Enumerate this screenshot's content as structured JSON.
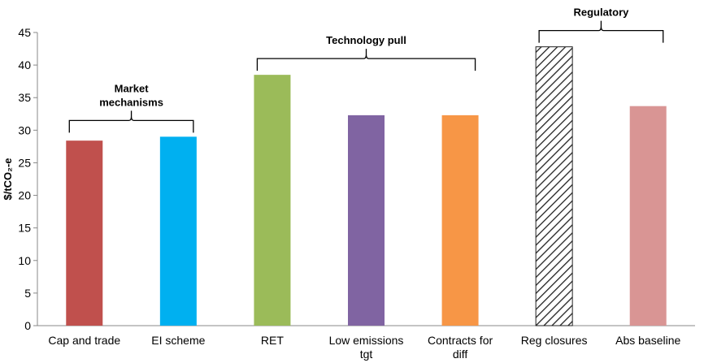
{
  "chart_data": {
    "type": "bar",
    "categories": [
      [
        "Cap and trade"
      ],
      [
        "EI scheme"
      ],
      [
        "RET"
      ],
      [
        "Low emissions",
        "tgt"
      ],
      [
        "Contracts for",
        "diff"
      ],
      [
        "Reg closures"
      ],
      [
        "Abs baseline"
      ]
    ],
    "values": [
      28.4,
      29.0,
      38.5,
      32.3,
      32.3,
      42.8,
      33.7
    ],
    "colors": [
      "#c0504d",
      "#00b0f0",
      "#9bbb59",
      "#8064a2",
      "#f79646",
      "hatched",
      "#d99594"
    ],
    "ylabel": "$/tCO₂-e",
    "ylim": [
      0,
      45
    ],
    "yticks": [
      0,
      5,
      10,
      15,
      20,
      25,
      30,
      35,
      40,
      45
    ],
    "grid": false,
    "groups": [
      {
        "label": [
          "Market",
          "mechanisms"
        ],
        "categories": [
          0,
          1
        ]
      },
      {
        "label": [
          "Technology pull"
        ],
        "categories": [
          2,
          3,
          4
        ]
      },
      {
        "label": [
          "Regulatory"
        ],
        "categories": [
          5,
          6
        ]
      }
    ]
  }
}
